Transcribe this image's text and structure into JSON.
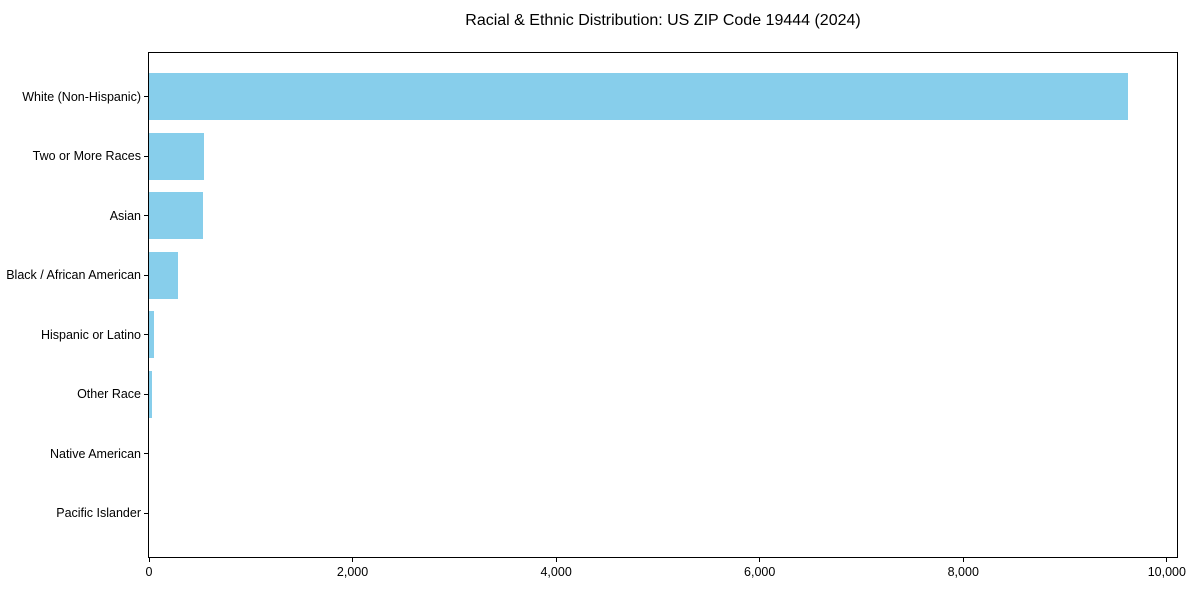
{
  "chart_data": {
    "type": "bar",
    "orientation": "horizontal",
    "title": "Racial & Ethnic Distribution: US ZIP Code 19444 (2024)",
    "categories": [
      "White (Non-Hispanic)",
      "Two or More Races",
      "Asian",
      "Black / African American",
      "Hispanic or Latino",
      "Other Race",
      "Native American",
      "Pacific Islander"
    ],
    "values": [
      9620,
      540,
      530,
      285,
      50,
      30,
      0,
      0
    ],
    "xlabel": "",
    "ylabel": "",
    "xlim": [
      0,
      10100
    ],
    "x_ticks": [
      0,
      2000,
      4000,
      6000,
      8000,
      10000
    ],
    "x_tick_labels": [
      "0",
      "2,000",
      "4,000",
      "6,000",
      "8,000",
      "10,000"
    ],
    "grid": false,
    "legend": "none",
    "colors": {
      "bar": "#87CEEB",
      "axis": "#000000",
      "text": "#000000",
      "background": "#ffffff"
    }
  }
}
